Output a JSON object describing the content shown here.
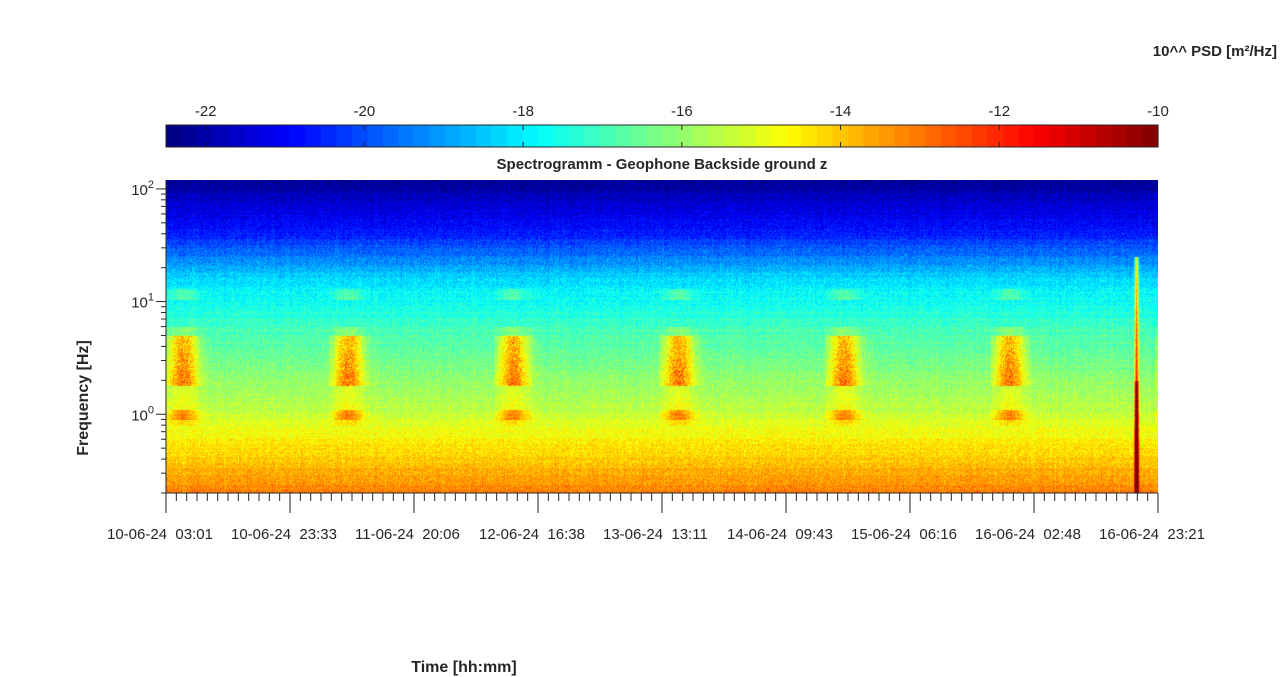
{
  "chart_data": {
    "type": "heatmap",
    "title": "Spectrogramm - Geophone Backside ground z",
    "xlabel": "Time [hh:mm]",
    "ylabel": "Frequency [Hz]",
    "y_scale": "log",
    "ylim": [
      0.2,
      120
    ],
    "y_ticks": [
      {
        "value": 1,
        "base": "10",
        "exp": "0"
      },
      {
        "value": 10,
        "base": "10",
        "exp": "1"
      },
      {
        "value": 100,
        "base": "10",
        "exp": "2"
      }
    ],
    "x_tick_labels": [
      "10-06-24  03:01",
      "10-06-24  23:33",
      "11-06-24  20:06",
      "12-06-24  16:38",
      "13-06-24  13:11",
      "14-06-24  09:43",
      "15-06-24  06:16",
      "16-06-24  02:48",
      "16-06-24  23:21"
    ],
    "colorbar": {
      "label": "10^^ PSD [m²/Hz]",
      "range": [
        -22.5,
        -10
      ],
      "ticks": [
        -22,
        -20,
        -18,
        -16,
        -14,
        -12,
        -10
      ],
      "tick_labels": [
        "-22",
        "-20",
        "-18",
        "-16",
        "-14",
        "-12",
        "-10"
      ],
      "colormap": "jet",
      "location": "top"
    },
    "grid": false,
    "features": [
      {
        "name": "daily band",
        "freq_hz": [
          2.5,
          4
        ],
        "days": 6
      },
      {
        "name": "spike",
        "x_fraction_of_range": 0.978,
        "freq_hz": [
          0.2,
          25
        ]
      }
    ]
  }
}
